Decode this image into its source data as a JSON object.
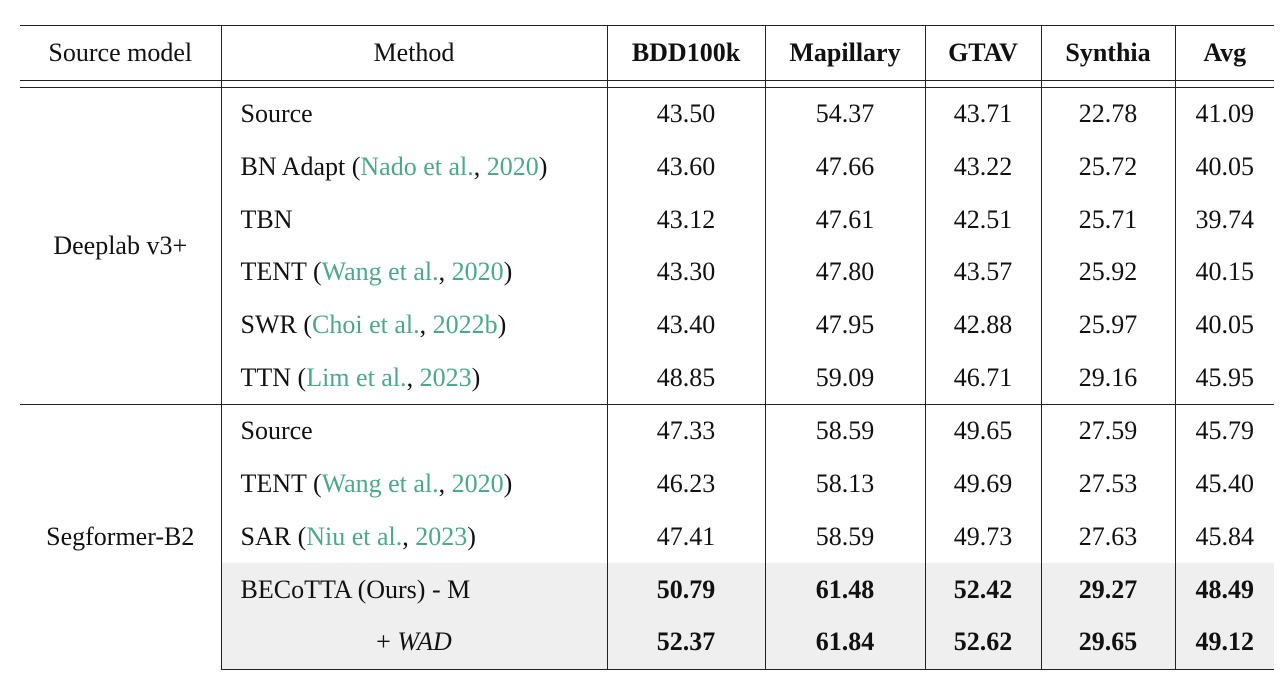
{
  "headers": [
    "Source model",
    "Method",
    "BDD100k",
    "Mapillary",
    "GTAV",
    "Synthia",
    "Avg"
  ],
  "groups": [
    {
      "model": "Deeplab v3+",
      "rows": [
        {
          "method": "Source",
          "values": [
            "43.50",
            "54.37",
            "43.71",
            "22.78",
            "41.09"
          ]
        },
        {
          "method": "BN Adapt (",
          "cite_author": "Nado et al.",
          "cite_sep": ", ",
          "cite_year": "2020",
          "close": ")",
          "values": [
            "43.60",
            "47.66",
            "43.22",
            "25.72",
            "40.05"
          ]
        },
        {
          "method": "TBN",
          "values": [
            "43.12",
            "47.61",
            "42.51",
            "25.71",
            "39.74"
          ]
        },
        {
          "method": "TENT (",
          "cite_author": "Wang et al.",
          "cite_sep": ", ",
          "cite_year": "2020",
          "close": ")",
          "values": [
            "43.30",
            "47.80",
            "43.57",
            "25.92",
            "40.15"
          ]
        },
        {
          "method": "SWR (",
          "cite_author": "Choi et al.",
          "cite_sep": ", ",
          "cite_year": "2022b",
          "close": ")",
          "values": [
            "43.40",
            "47.95",
            "42.88",
            "25.97",
            "40.05"
          ]
        },
        {
          "method": "TTN (",
          "cite_author": "Lim et al.",
          "cite_sep": ", ",
          "cite_year": "2023",
          "close": ")",
          "values": [
            "48.85",
            "59.09",
            "46.71",
            "29.16",
            "45.95"
          ]
        }
      ]
    },
    {
      "model": "Segformer-B2",
      "rows": [
        {
          "method": "Source",
          "values": [
            "47.33",
            "58.59",
            "49.65",
            "27.59",
            "45.79"
          ]
        },
        {
          "method": "TENT (",
          "cite_author": "Wang et al.",
          "cite_sep": ", ",
          "cite_year": "2020",
          "close": ")",
          "values": [
            "46.23",
            "58.13",
            "49.69",
            "27.53",
            "45.40"
          ]
        },
        {
          "method": "SAR (",
          "cite_author": "Niu et al.",
          "cite_sep": ", ",
          "cite_year": "2023",
          "close": ")",
          "values": [
            "47.41",
            "58.59",
            "49.73",
            "27.63",
            "45.84"
          ]
        },
        {
          "method": "BECoTTA (Ours) - M",
          "values": [
            "50.79",
            "61.48",
            "52.42",
            "29.27",
            "48.49"
          ]
        },
        {
          "method_prefix": "+ ",
          "method_em": "WAD",
          "values": [
            "52.37",
            "61.84",
            "52.62",
            "29.65",
            "49.12"
          ]
        }
      ]
    }
  ]
}
